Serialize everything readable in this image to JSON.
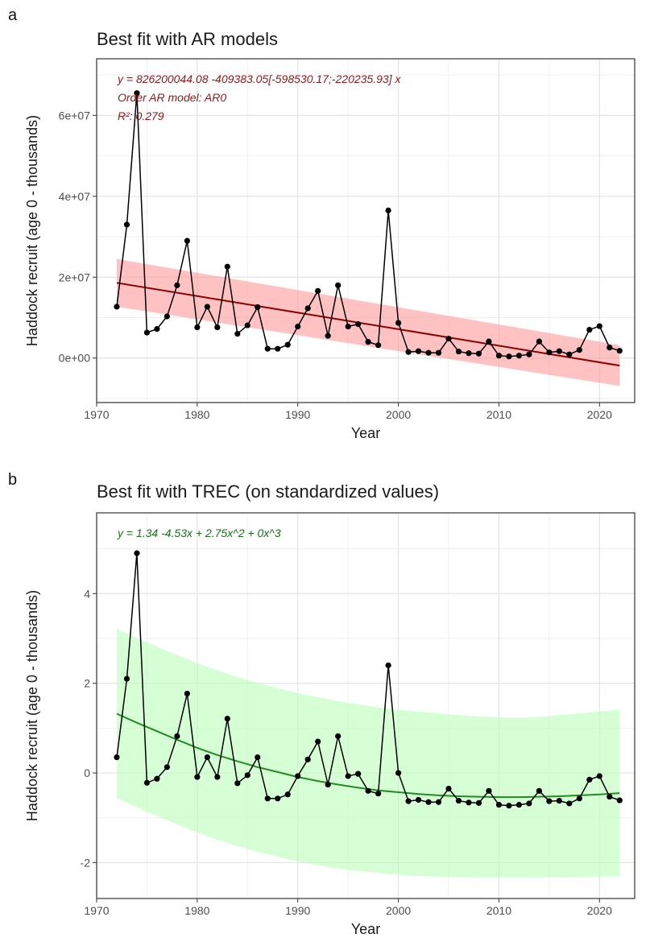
{
  "panels": {
    "a": {
      "letter": "a"
    },
    "b": {
      "letter": "b"
    }
  },
  "chart_data": [
    {
      "type": "line",
      "title": "Best fit with AR models",
      "xlabel": "Year",
      "ylabel": "Haddock recruit (age 0 - thousands)",
      "xlim": [
        1970,
        2023.5
      ],
      "ylim": [
        -11000000,
        74000000
      ],
      "x_ticks": [
        1970,
        1980,
        1990,
        2000,
        2010,
        2020
      ],
      "y_ticks": [
        0,
        20000000,
        40000000,
        60000000
      ],
      "y_tick_labels": [
        "0e+00",
        "2e+07",
        "4e+07",
        "6e+07"
      ],
      "grid": true,
      "point_color": "#000000",
      "fit_color": "#8b0000",
      "band_color": "#ff9999",
      "annotation_color": "#8b1a1a",
      "annotations": [
        "y = 826200044.08  -409383.05[-598530.17;-220235.93] x",
        "Order AR model: AR0",
        "R²: 0.279"
      ],
      "series": [
        {
          "x": [
            1972,
            1973,
            1974,
            1975,
            1976,
            1977,
            1978,
            1979,
            1980,
            1981,
            1982,
            1983,
            1984,
            1985,
            1986,
            1987,
            1988,
            1989,
            1990,
            1991,
            1992,
            1993,
            1994,
            1995,
            1996,
            1997,
            1998,
            1999,
            2000,
            2001,
            2002,
            2003,
            2004,
            2005,
            2006,
            2007,
            2008,
            2009,
            2010,
            2011,
            2012,
            2013,
            2014,
            2015,
            2016,
            2017,
            2018,
            2019,
            2020,
            2021,
            2022
          ],
          "values": [
            12700000,
            33000000,
            65500000,
            6300000,
            7200000,
            10300000,
            18000000,
            29000000,
            7600000,
            12700000,
            7600000,
            22600000,
            6000000,
            8100000,
            12600000,
            2300000,
            2300000,
            3300000,
            7800000,
            12300000,
            16600000,
            5500000,
            18000000,
            7800000,
            8400000,
            4000000,
            3200000,
            36500000,
            8700000,
            1500000,
            1700000,
            1300000,
            1300000,
            4800000,
            1600000,
            1200000,
            1100000,
            4100000,
            600000,
            400000,
            600000,
            900000,
            4100000,
            1400000,
            1700000,
            900000,
            2000000,
            7000000,
            7900000,
            2600000,
            1800000
          ]
        }
      ],
      "fit": {
        "x": [
          1972,
          2022
        ],
        "values": [
          18605000,
          -1864000
        ],
        "band_lower": [
          12700000,
          -6900000
        ],
        "band_upper": [
          24500000,
          3200000
        ]
      }
    },
    {
      "type": "line",
      "title": "Best fit with TREC (on standardized values)",
      "xlabel": "Year",
      "ylabel": "Haddock recruit (age 0 - thousands)",
      "xlim": [
        1970,
        2023.5
      ],
      "ylim": [
        -2.8,
        5.8
      ],
      "x_ticks": [
        1970,
        1980,
        1990,
        2000,
        2010,
        2020
      ],
      "y_ticks": [
        -2,
        0,
        2,
        4
      ],
      "y_tick_labels": [
        "-2",
        "0",
        "2",
        "4"
      ],
      "grid": true,
      "point_color": "#000000",
      "fit_color": "#228b22",
      "band_color": "#bbffbb",
      "annotation_color": "#1a6b1a",
      "annotations": [
        "y =  1.34   -4.53x  + 2.75x^2  + 0x^3"
      ],
      "series": [
        {
          "x": [
            1972,
            1973,
            1974,
            1975,
            1976,
            1977,
            1978,
            1979,
            1980,
            1981,
            1982,
            1983,
            1984,
            1985,
            1986,
            1987,
            1988,
            1989,
            1990,
            1991,
            1992,
            1993,
            1994,
            1995,
            1996,
            1997,
            1998,
            1999,
            2000,
            2001,
            2002,
            2003,
            2004,
            2005,
            2006,
            2007,
            2008,
            2009,
            2010,
            2011,
            2012,
            2013,
            2014,
            2015,
            2016,
            2017,
            2018,
            2019,
            2020,
            2021,
            2022
          ],
          "values": [
            0.35,
            2.1,
            4.9,
            -0.22,
            -0.13,
            0.13,
            0.82,
            1.77,
            -0.09,
            0.35,
            -0.09,
            1.21,
            -0.23,
            -0.05,
            0.35,
            -0.57,
            -0.57,
            -0.48,
            -0.07,
            0.3,
            0.7,
            -0.26,
            0.82,
            -0.07,
            -0.02,
            -0.4,
            -0.46,
            2.4,
            0.0,
            -0.63,
            -0.6,
            -0.65,
            -0.65,
            -0.35,
            -0.62,
            -0.66,
            -0.67,
            -0.4,
            -0.71,
            -0.73,
            -0.71,
            -0.68,
            -0.4,
            -0.63,
            -0.62,
            -0.68,
            -0.57,
            -0.15,
            -0.07,
            -0.53,
            -0.61
          ]
        }
      ],
      "fit": {
        "x": [
          1972,
          1974,
          1976,
          1978,
          1980,
          1982,
          1984,
          1986,
          1988,
          1990,
          1992,
          1994,
          1996,
          1998,
          2000,
          2002,
          2004,
          2006,
          2008,
          2010,
          2012,
          2014,
          2016,
          2018,
          2020,
          2022
        ],
        "values": [
          1.32,
          1.12,
          0.93,
          0.74,
          0.56,
          0.4,
          0.26,
          0.13,
          0.02,
          -0.09,
          -0.18,
          -0.26,
          -0.33,
          -0.39,
          -0.43,
          -0.47,
          -0.5,
          -0.52,
          -0.53,
          -0.54,
          -0.54,
          -0.53,
          -0.52,
          -0.5,
          -0.48,
          -0.45
        ],
        "band_lower": [
          -0.57,
          -0.77,
          -0.96,
          -1.15,
          -1.33,
          -1.49,
          -1.63,
          -1.76,
          -1.87,
          -1.97,
          -2.06,
          -2.13,
          -2.19,
          -2.23,
          -2.27,
          -2.3,
          -2.31,
          -2.32,
          -2.33,
          -2.33,
          -2.33,
          -2.33,
          -2.32,
          -2.32,
          -2.31,
          -2.31
        ],
        "band_upper": [
          3.21,
          3.01,
          2.82,
          2.63,
          2.45,
          2.29,
          2.14,
          2.01,
          1.89,
          1.78,
          1.69,
          1.6,
          1.53,
          1.46,
          1.41,
          1.37,
          1.33,
          1.29,
          1.26,
          1.24,
          1.23,
          1.25,
          1.29,
          1.33,
          1.37,
          1.41
        ]
      }
    }
  ]
}
